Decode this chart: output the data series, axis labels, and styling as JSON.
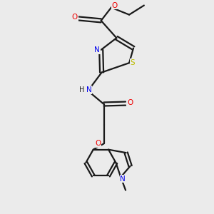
{
  "background_color": "#ebebeb",
  "bond_color": "#1a1a1a",
  "atom_colors": {
    "N": "#0000ee",
    "O": "#ee0000",
    "S": "#bbbb00",
    "C": "#1a1a1a"
  },
  "figsize": [
    3.0,
    3.0
  ],
  "dpi": 100,
  "lw": 1.6
}
